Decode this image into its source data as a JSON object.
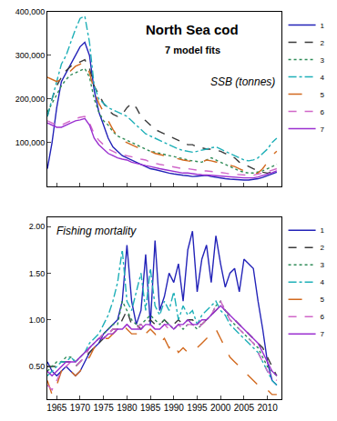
{
  "chart_data": [
    {
      "type": "line",
      "title": "North Sea cod",
      "subtitle": "7 model fits",
      "annotation": "SSB (tonnes)",
      "x": [
        1963,
        1964,
        1965,
        1966,
        1967,
        1968,
        1969,
        1970,
        1971,
        1972,
        1973,
        1974,
        1975,
        1976,
        1977,
        1978,
        1979,
        1980,
        1981,
        1982,
        1983,
        1984,
        1985,
        1986,
        1987,
        1988,
        1989,
        1990,
        1991,
        1992,
        1993,
        1994,
        1995,
        1996,
        1997,
        1998,
        1999,
        2000,
        2001,
        2002,
        2003,
        2004,
        2005,
        2006,
        2007,
        2008,
        2009,
        2010,
        2011,
        2012
      ],
      "xlim": [
        1963,
        2013
      ],
      "xticks": [
        1965,
        1970,
        1975,
        1980,
        1985,
        1990,
        1995,
        2000,
        2005,
        2010
      ],
      "ylim": [
        0,
        400000
      ],
      "yticks": [
        {
          "value": 100000,
          "label": "100,000"
        },
        {
          "value": 200000,
          "label": "200,000"
        },
        {
          "value": 300000,
          "label": "300,000"
        },
        {
          "value": 400000,
          "label": "400,000"
        }
      ],
      "tick_labels": "y",
      "grid": false,
      "legend": "top right",
      "series": [
        {
          "name": "1",
          "color": "#2323b8",
          "line_style": "solid",
          "values": [
            40000,
            100000,
            180000,
            240000,
            260000,
            280000,
            300000,
            320000,
            330000,
            300000,
            220000,
            170000,
            140000,
            110000,
            90000,
            80000,
            70000,
            65000,
            60000,
            55000,
            50000,
            45000,
            40000,
            38000,
            35000,
            33000,
            30000,
            28000,
            26000,
            25000,
            24000,
            22000,
            23000,
            24000,
            25000,
            22000,
            20000,
            18000,
            17000,
            16000,
            15000,
            15000,
            14000,
            14000,
            15000,
            17000,
            20000,
            24000,
            28000,
            32000
          ]
        },
        {
          "name": "2",
          "color": "#3a3a3a",
          "line_style": "dash",
          "values": [
            160000,
            200000,
            230000,
            250000,
            265000,
            275000,
            280000,
            285000,
            290000,
            270000,
            230000,
            210000,
            190000,
            175000,
            165000,
            160000,
            165000,
            180000,
            190000,
            180000,
            160000,
            150000,
            140000,
            130000,
            125000,
            120000,
            115000,
            110000,
            105000,
            100000,
            95000,
            95000,
            90000,
            88000,
            85000,
            85000,
            82000,
            80000,
            75000,
            70000,
            65000,
            55000,
            50000,
            45000,
            40000,
            35000,
            32000,
            30000,
            32000,
            35000
          ]
        },
        {
          "name": "3",
          "color": "#2e8b57",
          "line_style": "dot",
          "values": [
            170000,
            190000,
            210000,
            230000,
            245000,
            255000,
            260000,
            265000,
            270000,
            250000,
            200000,
            170000,
            150000,
            140000,
            125000,
            115000,
            110000,
            105000,
            100000,
            95000,
            90000,
            85000,
            80000,
            78000,
            75000,
            72000,
            70000,
            68000,
            65000,
            62000,
            60000,
            58000,
            56000,
            55000,
            60000,
            65000,
            60000,
            55000,
            50000,
            45000,
            40000,
            35000,
            32000,
            30000,
            30000,
            32000,
            35000,
            40000,
            45000,
            50000
          ]
        },
        {
          "name": "4",
          "color": "#1fb0b8",
          "line_style": "dashdot",
          "values": [
            160000,
            200000,
            240000,
            280000,
            300000,
            330000,
            360000,
            385000,
            390000,
            330000,
            230000,
            200000,
            190000,
            180000,
            175000,
            170000,
            165000,
            160000,
            150000,
            140000,
            130000,
            120000,
            115000,
            110000,
            105000,
            100000,
            95000,
            90000,
            85000,
            82000,
            80000,
            78000,
            80000,
            82000,
            85000,
            88000,
            90000,
            85000,
            80000,
            75000,
            70000,
            65000,
            60000,
            58000,
            60000,
            65000,
            75000,
            85000,
            100000,
            110000
          ]
        },
        {
          "name": "5",
          "color": "#d2691e",
          "line_style": "longdash",
          "values": [
            250000,
            245000,
            240000,
            245000,
            255000,
            265000,
            275000,
            280000,
            285000,
            260000,
            220000,
            190000,
            170000,
            150000,
            130000,
            115000,
            105000,
            100000,
            95000,
            90000,
            85000,
            82000,
            80000,
            75000,
            72000,
            70000,
            68000,
            65000,
            62000,
            60000,
            58000,
            56000,
            55000,
            55000,
            60000,
            58000,
            55000,
            52000,
            50000,
            48000,
            45000,
            40000,
            35000,
            30000,
            28000,
            30000,
            40000,
            55000,
            70000,
            80000
          ]
        },
        {
          "name": "6",
          "color": "#d066c8",
          "line_style": "dash",
          "values": [
            150000,
            145000,
            140000,
            140000,
            145000,
            150000,
            155000,
            158000,
            160000,
            145000,
            120000,
            105000,
            95000,
            85000,
            80000,
            75000,
            72000,
            70000,
            68000,
            65000,
            62000,
            60000,
            55000,
            52000,
            50000,
            48000,
            46000,
            44000,
            42000,
            40000,
            40000,
            38000,
            36000,
            35000,
            35000,
            34000,
            33000,
            32000,
            30000,
            28000,
            27000,
            26000,
            25000,
            25000,
            25000,
            27000,
            30000,
            33000,
            37000,
            40000
          ]
        },
        {
          "name": "7",
          "color": "#9b30d0",
          "line_style": "solid",
          "values": [
            145000,
            140000,
            135000,
            135000,
            140000,
            145000,
            150000,
            152000,
            155000,
            140000,
            110000,
            95000,
            85000,
            75000,
            70000,
            65000,
            62000,
            60000,
            55000,
            52000,
            50000,
            47000,
            45000,
            42000,
            40000,
            38000,
            36000,
            34000,
            32000,
            30000,
            30000,
            28000,
            27000,
            26000,
            26000,
            25000,
            24000,
            23000,
            22000,
            21000,
            20000,
            20000,
            19000,
            19000,
            19000,
            21000,
            24000,
            27000,
            31000,
            35000
          ]
        }
      ]
    },
    {
      "type": "line",
      "annotation": "Fishing mortality",
      "x": [
        1963,
        1964,
        1965,
        1966,
        1967,
        1968,
        1969,
        1970,
        1971,
        1972,
        1973,
        1974,
        1975,
        1976,
        1977,
        1978,
        1979,
        1980,
        1981,
        1982,
        1983,
        1984,
        1985,
        1986,
        1987,
        1988,
        1989,
        1990,
        1991,
        1992,
        1993,
        1994,
        1995,
        1996,
        1997,
        1998,
        1999,
        2000,
        2001,
        2002,
        2003,
        2004,
        2005,
        2006,
        2007,
        2008,
        2009,
        2010,
        2011,
        2012
      ],
      "xlim": [
        1963,
        2013
      ],
      "xticks": [
        1965,
        1970,
        1975,
        1980,
        1985,
        1990,
        1995,
        2000,
        2005,
        2010
      ],
      "ylim": [
        0.15,
        2.1
      ],
      "yticks": [
        {
          "value": 0.5,
          "label": "0.50"
        },
        {
          "value": 1,
          "label": "1.00"
        },
        {
          "value": 1.5,
          "label": "1.50"
        },
        {
          "value": 2,
          "label": "2.00"
        }
      ],
      "grid": false,
      "legend": "top right",
      "series": [
        {
          "name": "1",
          "color": "#2323b8",
          "line_style": "solid",
          "values": [
            0.55,
            0.45,
            0.4,
            0.45,
            0.5,
            0.45,
            0.4,
            0.45,
            0.55,
            0.65,
            0.7,
            0.75,
            0.85,
            0.9,
            0.95,
            1.0,
            1.2,
            1.8,
            1.2,
            0.95,
            1.1,
            1.7,
            0.95,
            1.85,
            1.1,
            1.25,
            1.5,
            1.4,
            1.6,
            1.2,
            1.75,
            1.95,
            1.3,
            1.65,
            1.8,
            1.4,
            1.9,
            1.6,
            1.35,
            1.5,
            1.55,
            1.3,
            1.65,
            1.6,
            1.55,
            1.2,
            0.9,
            0.55,
            0.35,
            0.3
          ]
        },
        {
          "name": "2",
          "color": "#3a3a3a",
          "line_style": "dash",
          "values": [
            0.5,
            0.5,
            0.5,
            0.55,
            0.55,
            0.55,
            0.5,
            0.55,
            0.6,
            0.65,
            0.7,
            0.75,
            0.8,
            0.85,
            0.9,
            0.9,
            1.0,
            1.1,
            0.95,
            0.95,
            0.9,
            0.95,
            1.0,
            0.95,
            0.95,
            1.0,
            0.95,
            0.95,
            1.0,
            0.95,
            1.0,
            1.0,
            0.95,
            0.95,
            1.0,
            1.05,
            1.1,
            1.15,
            1.1,
            1.05,
            1.0,
            0.95,
            0.9,
            0.85,
            0.8,
            0.75,
            0.7,
            0.6,
            0.5,
            0.4
          ]
        },
        {
          "name": "3",
          "color": "#2e8b57",
          "line_style": "dot",
          "values": [
            0.45,
            0.5,
            0.55,
            0.55,
            0.6,
            0.6,
            0.55,
            0.6,
            0.65,
            0.7,
            0.75,
            0.8,
            0.85,
            0.9,
            0.95,
            0.95,
            1.2,
            1.1,
            1.0,
            0.95,
            0.95,
            1.0,
            1.05,
            1.0,
            0.95,
            1.0,
            0.95,
            0.9,
            0.95,
            0.9,
            0.95,
            0.95,
            0.9,
            0.95,
            1.0,
            1.05,
            1.15,
            1.2,
            1.1,
            1.0,
            0.95,
            0.9,
            0.85,
            0.8,
            0.75,
            0.7,
            0.6,
            0.5,
            0.45,
            0.4
          ]
        },
        {
          "name": "4",
          "color": "#1fb0b8",
          "line_style": "dashdot",
          "values": [
            0.4,
            0.45,
            0.5,
            0.55,
            0.55,
            0.6,
            0.55,
            0.6,
            0.65,
            0.75,
            0.8,
            0.85,
            0.95,
            1.05,
            1.2,
            1.4,
            1.75,
            1.2,
            1.1,
            1.3,
            1.5,
            1.1,
            1.55,
            1.15,
            1.05,
            1.2,
            1.1,
            1.3,
            1.0,
            1.15,
            1.05,
            1.1,
            0.95,
            1.05,
            1.1,
            1.15,
            1.2,
            1.1,
            1.05,
            0.95,
            0.9,
            0.85,
            0.8,
            0.75,
            0.7,
            0.65,
            0.55,
            0.45,
            0.35,
            0.3
          ]
        },
        {
          "name": "5",
          "color": "#d2691e",
          "line_style": "longdash",
          "values": [
            0.35,
            0.2,
            0.3,
            0.45,
            0.5,
            0.45,
            0.4,
            0.45,
            0.55,
            0.6,
            0.7,
            0.75,
            0.8,
            0.8,
            0.85,
            0.9,
            0.95,
            0.9,
            0.85,
            0.85,
            0.8,
            0.85,
            0.9,
            0.85,
            0.75,
            0.8,
            0.7,
            0.75,
            0.65,
            0.7,
            0.65,
            0.7,
            0.7,
            0.75,
            0.8,
            0.85,
            0.9,
            0.8,
            0.7,
            0.6,
            0.55,
            0.5,
            0.45,
            0.4,
            0.35,
            0.3,
            0.25,
            0.25,
            0.2,
            0.2
          ]
        },
        {
          "name": "6",
          "color": "#d066c8",
          "line_style": "dash",
          "values": [
            0.3,
            0.25,
            0.35,
            0.45,
            0.5,
            0.55,
            0.5,
            0.55,
            0.6,
            0.7,
            0.75,
            0.8,
            0.85,
            0.85,
            0.9,
            0.9,
            0.9,
            0.95,
            0.9,
            0.9,
            0.95,
            0.9,
            0.95,
            0.9,
            0.9,
            0.95,
            0.9,
            0.9,
            0.95,
            0.9,
            0.95,
            0.95,
            0.9,
            0.95,
            1.0,
            1.05,
            1.15,
            1.2,
            1.1,
            1.0,
            0.95,
            0.9,
            0.85,
            0.8,
            0.75,
            0.65,
            0.55,
            0.45,
            0.4,
            0.35
          ]
        },
        {
          "name": "7",
          "color": "#9b30d0",
          "line_style": "solid",
          "values": [
            0.45,
            0.4,
            0.45,
            0.5,
            0.55,
            0.55,
            0.55,
            0.6,
            0.65,
            0.7,
            0.75,
            0.8,
            0.8,
            0.85,
            0.85,
            0.9,
            0.9,
            0.95,
            0.9,
            0.9,
            0.9,
            0.95,
            0.95,
            0.9,
            0.9,
            0.95,
            0.95,
            0.9,
            0.95,
            0.95,
            1.0,
            0.95,
            0.95,
            1.0,
            1.0,
            1.05,
            1.1,
            1.15,
            1.1,
            1.05,
            1.0,
            0.95,
            0.9,
            0.85,
            0.8,
            0.75,
            0.65,
            0.55,
            0.45,
            0.4
          ]
        }
      ]
    }
  ]
}
